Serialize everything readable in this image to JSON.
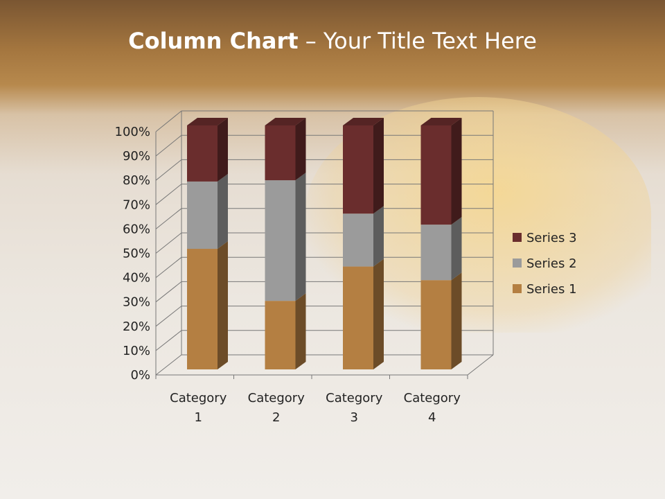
{
  "slide": {
    "title_bold": "Column Chart",
    "title_rest": " – Your Title Text Here"
  },
  "chart_data": {
    "type": "bar",
    "subtype": "3d-100%-stacked-column",
    "categories": [
      "Category 1",
      "Category 2",
      "Category 3",
      "Category 4"
    ],
    "series": [
      {
        "name": "Series 1",
        "values": [
          4.3,
          2.5,
          3.5,
          4.5
        ],
        "color": "#b47f42"
      },
      {
        "name": "Series 2",
        "values": [
          2.4,
          4.4,
          1.8,
          2.8
        ],
        "color": "#9b9b9b"
      },
      {
        "name": "Series 3",
        "values": [
          2,
          2,
          3,
          5
        ],
        "color": "#6a2d2d"
      }
    ],
    "yticks": [
      "0%",
      "10%",
      "20%",
      "30%",
      "40%",
      "50%",
      "60%",
      "70%",
      "80%",
      "90%",
      "100%"
    ],
    "ylim": [
      0,
      100
    ],
    "grid": true,
    "legend": "right"
  }
}
